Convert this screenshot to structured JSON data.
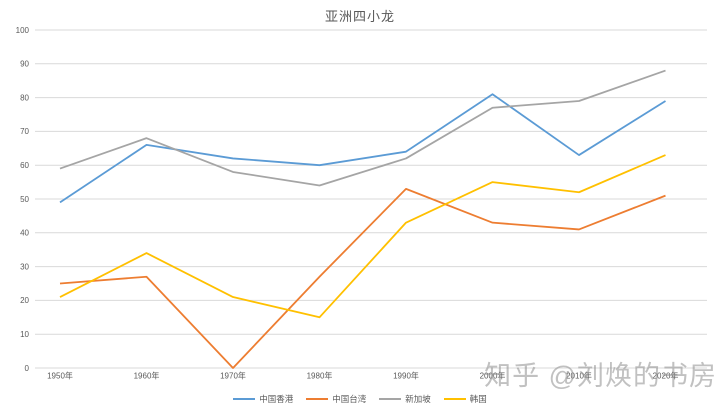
{
  "chart_data": {
    "type": "line",
    "title": "亚洲四小龙",
    "categories": [
      "1950年",
      "1960年",
      "1970年",
      "1980年",
      "1990年",
      "2000年",
      "2010年",
      "2020年"
    ],
    "series": [
      {
        "name": "中国香港",
        "color": "#5B9BD5",
        "values": [
          49,
          66,
          62,
          60,
          64,
          81,
          63,
          79
        ]
      },
      {
        "name": "中国台湾",
        "color": "#ED7D31",
        "values": [
          25,
          27,
          0,
          27,
          53,
          43,
          41,
          51
        ]
      },
      {
        "name": "新加坡",
        "color": "#A5A5A5",
        "values": [
          59,
          68,
          58,
          54,
          62,
          77,
          79,
          88
        ]
      },
      {
        "name": "韩国",
        "color": "#FFC000",
        "values": [
          21,
          34,
          21,
          15,
          43,
          55,
          52,
          63
        ]
      }
    ],
    "xlabel": "",
    "ylabel": "",
    "ylim": [
      0,
      100
    ],
    "ytick_step": 10,
    "grid": true,
    "legend_position": "bottom",
    "gridline_color": "#D9D9D9",
    "text_color": "#595959"
  },
  "watermark": {
    "text": "知乎 @刘焕的书房"
  }
}
